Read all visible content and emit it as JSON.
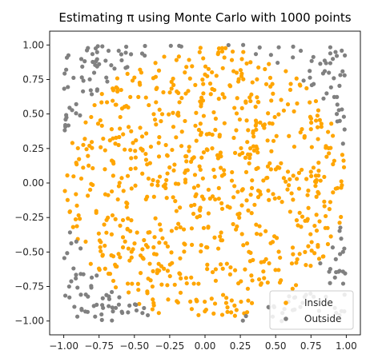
{
  "chart_data": {
    "type": "scatter",
    "title": "Estimating π using Monte Carlo with 1000 points",
    "xlabel": "",
    "ylabel": "",
    "xlim": [
      -1.1,
      1.1
    ],
    "ylim": [
      -1.1,
      1.1
    ],
    "x_ticks": [
      "−1.00",
      "−0.75",
      "−0.50",
      "−0.25",
      "0.00",
      "0.25",
      "0.50",
      "0.75",
      "1.00"
    ],
    "y_ticks": [
      "1.00",
      "0.75",
      "0.50",
      "0.25",
      "0.00",
      "−0.25",
      "−0.50",
      "−0.75",
      "−1.00"
    ],
    "grid": false,
    "legend_position": "lower-right",
    "total_points": 1000,
    "series": [
      {
        "name": "Inside",
        "color": "#ffa500",
        "points": []
      },
      {
        "name": "Outside",
        "color": "#808080",
        "points": []
      }
    ]
  }
}
